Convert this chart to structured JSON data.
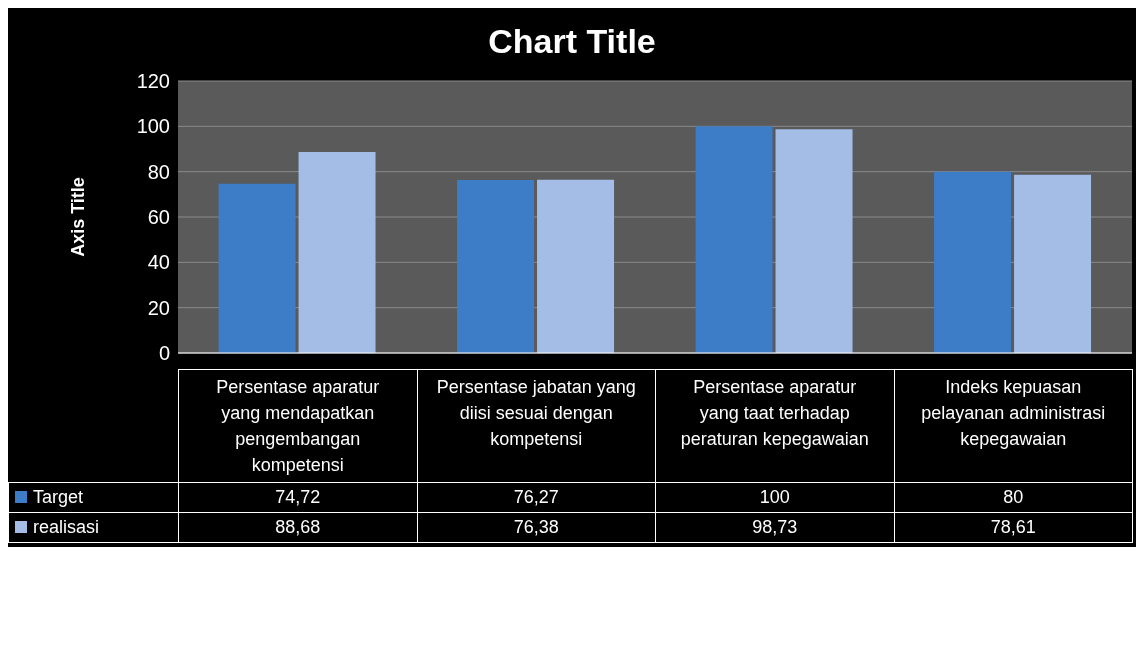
{
  "chart_data": {
    "type": "bar",
    "title": "Chart Title",
    "ylabel": "Axis Title",
    "categories": [
      "Persentase aparatur yang mendapatkan pengembangan kompetensi",
      "Persentase jabatan yang diisi sesuai dengan kompetensi",
      "Persentase aparatur yang taat terhadap peraturan kepegawaian",
      "Indeks kepuasan pelayanan administrasi kepegawaian"
    ],
    "series": [
      {
        "name": "Target",
        "color": "#3d7cc6",
        "values": [
          74.72,
          76.27,
          100,
          80
        ],
        "value_labels": [
          "74,72",
          "76,27",
          "100",
          "80"
        ]
      },
      {
        "name": "realisasi",
        "color": "#a3bde6",
        "values": [
          88.68,
          76.38,
          98.73,
          78.61
        ],
        "value_labels": [
          "88,68",
          "76,38",
          "98,73",
          "78,61"
        ]
      }
    ],
    "ylim": [
      0,
      120
    ],
    "yticks": [
      0,
      20,
      40,
      60,
      80,
      100,
      120
    ],
    "grid": "y",
    "legend": "bottom left"
  }
}
